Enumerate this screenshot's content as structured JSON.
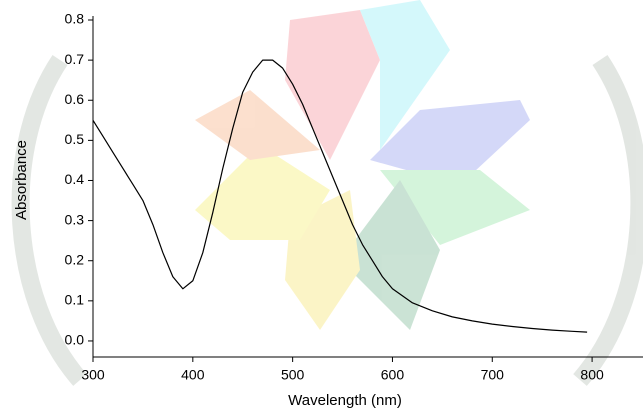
{
  "chart_data": {
    "type": "line",
    "xlabel": "Wavelength (nm)",
    "ylabel": "Absorbance",
    "x": [
      300,
      310,
      320,
      330,
      340,
      350,
      360,
      370,
      380,
      390,
      400,
      410,
      420,
      430,
      440,
      450,
      460,
      470,
      480,
      490,
      500,
      510,
      520,
      530,
      540,
      550,
      560,
      570,
      580,
      590,
      600,
      620,
      640,
      660,
      680,
      700,
      720,
      740,
      760,
      780,
      795
    ],
    "series": [
      {
        "name": "Absorbance",
        "color": "#000000",
        "values": [
          0.55,
          0.51,
          0.47,
          0.43,
          0.39,
          0.35,
          0.29,
          0.22,
          0.16,
          0.13,
          0.15,
          0.22,
          0.32,
          0.43,
          0.53,
          0.62,
          0.67,
          0.7,
          0.7,
          0.68,
          0.64,
          0.59,
          0.53,
          0.47,
          0.41,
          0.35,
          0.29,
          0.24,
          0.2,
          0.16,
          0.13,
          0.095,
          0.075,
          0.06,
          0.05,
          0.042,
          0.036,
          0.031,
          0.027,
          0.024,
          0.022
        ]
      }
    ],
    "xlim": [
      300,
      851
    ],
    "ylim": [
      -0.04,
      0.81
    ],
    "xticks": [
      300,
      400,
      500,
      600,
      700,
      800
    ],
    "yticks": [
      {
        "value": 0,
        "label": "0.0"
      },
      0.1,
      0.2,
      0.3,
      0.4,
      0.5,
      0.6,
      0.7,
      0.8
    ]
  }
}
